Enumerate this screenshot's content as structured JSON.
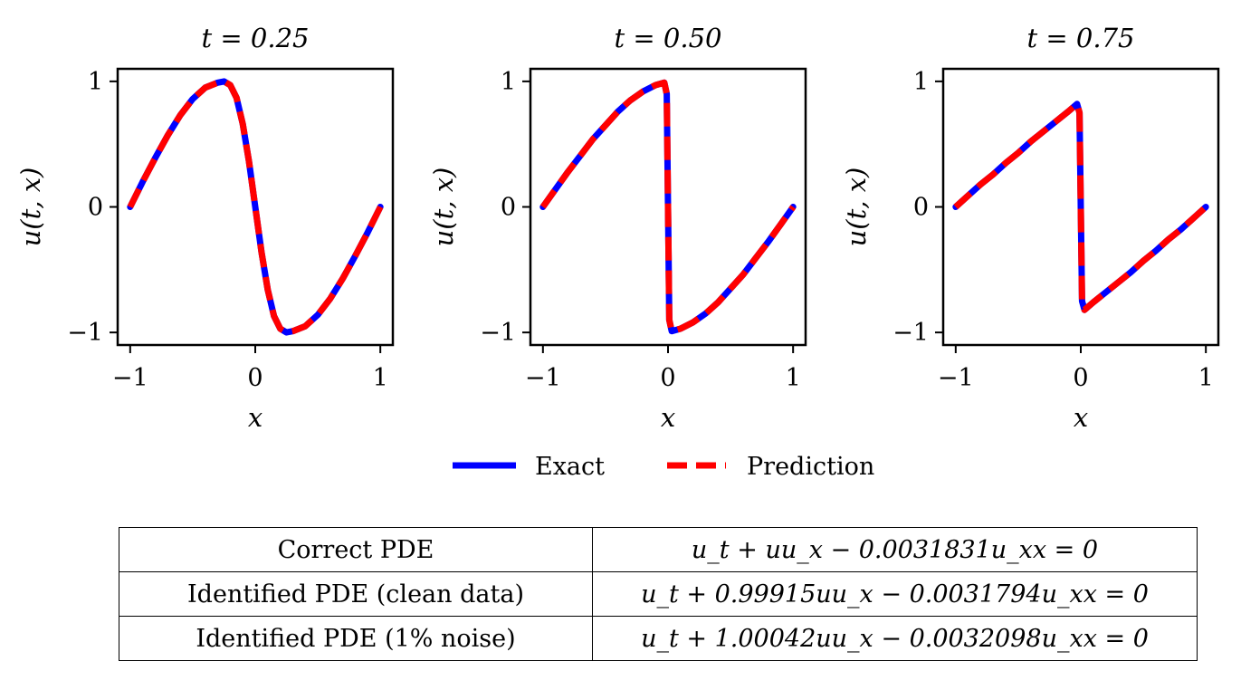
{
  "chart_data": [
    {
      "type": "line",
      "title": "t = 0.25",
      "xlabel": "x",
      "ylabel": "u(t, x)",
      "xlim": [
        -1.1,
        1.1
      ],
      "ylim": [
        -1.1,
        1.1
      ],
      "xticks": [
        "−1",
        "0",
        "1"
      ],
      "yticks": [
        "−1",
        "0",
        "1"
      ],
      "x": [
        -1.0,
        -0.9,
        -0.8,
        -0.7,
        -0.6,
        -0.5,
        -0.4,
        -0.3,
        -0.25,
        -0.2,
        -0.15,
        -0.1,
        -0.05,
        0.0,
        0.05,
        0.1,
        0.15,
        0.2,
        0.25,
        0.3,
        0.4,
        0.5,
        0.6,
        0.7,
        0.8,
        0.9,
        1.0
      ],
      "series": [
        {
          "name": "Exact",
          "values": [
            0.0,
            0.2,
            0.39,
            0.57,
            0.73,
            0.86,
            0.95,
            0.99,
            1.0,
            0.97,
            0.87,
            0.66,
            0.36,
            0.0,
            -0.36,
            -0.66,
            -0.87,
            -0.97,
            -1.0,
            -0.99,
            -0.95,
            -0.86,
            -0.73,
            -0.57,
            -0.39,
            -0.2,
            0.0
          ]
        },
        {
          "name": "Prediction",
          "values": [
            0.0,
            0.2,
            0.39,
            0.57,
            0.73,
            0.86,
            0.95,
            0.99,
            1.0,
            0.97,
            0.87,
            0.66,
            0.36,
            0.0,
            -0.36,
            -0.66,
            -0.87,
            -0.97,
            -1.0,
            -0.99,
            -0.95,
            -0.86,
            -0.73,
            -0.57,
            -0.39,
            -0.2,
            0.0
          ]
        }
      ]
    },
    {
      "type": "line",
      "title": "t = 0.50",
      "xlabel": "x",
      "ylabel": "u(t, x)",
      "xlim": [
        -1.1,
        1.1
      ],
      "ylim": [
        -1.1,
        1.1
      ],
      "xticks": [
        "−1",
        "0",
        "1"
      ],
      "yticks": [
        "−1",
        "0",
        "1"
      ],
      "x": [
        -1.0,
        -0.9,
        -0.8,
        -0.7,
        -0.6,
        -0.5,
        -0.4,
        -0.3,
        -0.2,
        -0.1,
        -0.03,
        -0.01,
        0.0,
        0.01,
        0.03,
        0.1,
        0.2,
        0.3,
        0.4,
        0.5,
        0.6,
        0.7,
        0.8,
        0.9,
        1.0
      ],
      "series": [
        {
          "name": "Exact",
          "values": [
            0.0,
            0.14,
            0.28,
            0.41,
            0.54,
            0.65,
            0.76,
            0.85,
            0.92,
            0.97,
            0.99,
            0.9,
            0.0,
            -0.9,
            -0.99,
            -0.97,
            -0.92,
            -0.85,
            -0.76,
            -0.65,
            -0.54,
            -0.41,
            -0.28,
            -0.14,
            0.0
          ]
        },
        {
          "name": "Prediction",
          "values": [
            0.0,
            0.14,
            0.28,
            0.41,
            0.54,
            0.65,
            0.76,
            0.85,
            0.92,
            0.97,
            0.99,
            0.9,
            0.0,
            -0.9,
            -0.99,
            -0.97,
            -0.92,
            -0.85,
            -0.76,
            -0.65,
            -0.54,
            -0.41,
            -0.28,
            -0.14,
            0.0
          ]
        }
      ]
    },
    {
      "type": "line",
      "title": "t = 0.75",
      "xlabel": "x",
      "ylabel": "u(t, x)",
      "xlim": [
        -1.1,
        1.1
      ],
      "ylim": [
        -1.1,
        1.1
      ],
      "xticks": [
        "−1",
        "0",
        "1"
      ],
      "yticks": [
        "−1",
        "0",
        "1"
      ],
      "x": [
        -1.0,
        -0.9,
        -0.8,
        -0.7,
        -0.6,
        -0.5,
        -0.4,
        -0.3,
        -0.2,
        -0.1,
        -0.03,
        -0.01,
        0.0,
        0.01,
        0.03,
        0.1,
        0.2,
        0.3,
        0.4,
        0.5,
        0.6,
        0.7,
        0.8,
        0.9,
        1.0
      ],
      "series": [
        {
          "name": "Exact",
          "values": [
            0.0,
            0.09,
            0.18,
            0.26,
            0.35,
            0.43,
            0.52,
            0.6,
            0.68,
            0.76,
            0.82,
            0.75,
            0.0,
            -0.75,
            -0.82,
            -0.76,
            -0.68,
            -0.6,
            -0.52,
            -0.43,
            -0.35,
            -0.26,
            -0.18,
            -0.09,
            0.0
          ]
        },
        {
          "name": "Prediction",
          "values": [
            0.0,
            0.09,
            0.18,
            0.26,
            0.35,
            0.43,
            0.52,
            0.6,
            0.68,
            0.76,
            0.82,
            0.75,
            0.0,
            -0.75,
            -0.82,
            -0.76,
            -0.68,
            -0.6,
            -0.52,
            -0.43,
            -0.35,
            -0.26,
            -0.18,
            -0.09,
            0.0
          ]
        }
      ]
    }
  ],
  "legend": {
    "placement": "bottom-center",
    "entries": [
      {
        "label": "Exact",
        "color": "#0000ff",
        "style": "solid"
      },
      {
        "label": "Prediction",
        "color": "#ff0000",
        "style": "dashed"
      }
    ]
  },
  "table": {
    "rows": [
      {
        "label": "Correct PDE",
        "equation": "u_t + uu_x − 0.0031831u_xx = 0"
      },
      {
        "label": "Identified PDE (clean data)",
        "equation": "u_t + 0.99915uu_x − 0.0031794u_xx = 0"
      },
      {
        "label": "Identified PDE (1% noise)",
        "equation": "u_t + 1.00042uu_x − 0.0032098u_xx = 0"
      }
    ]
  }
}
